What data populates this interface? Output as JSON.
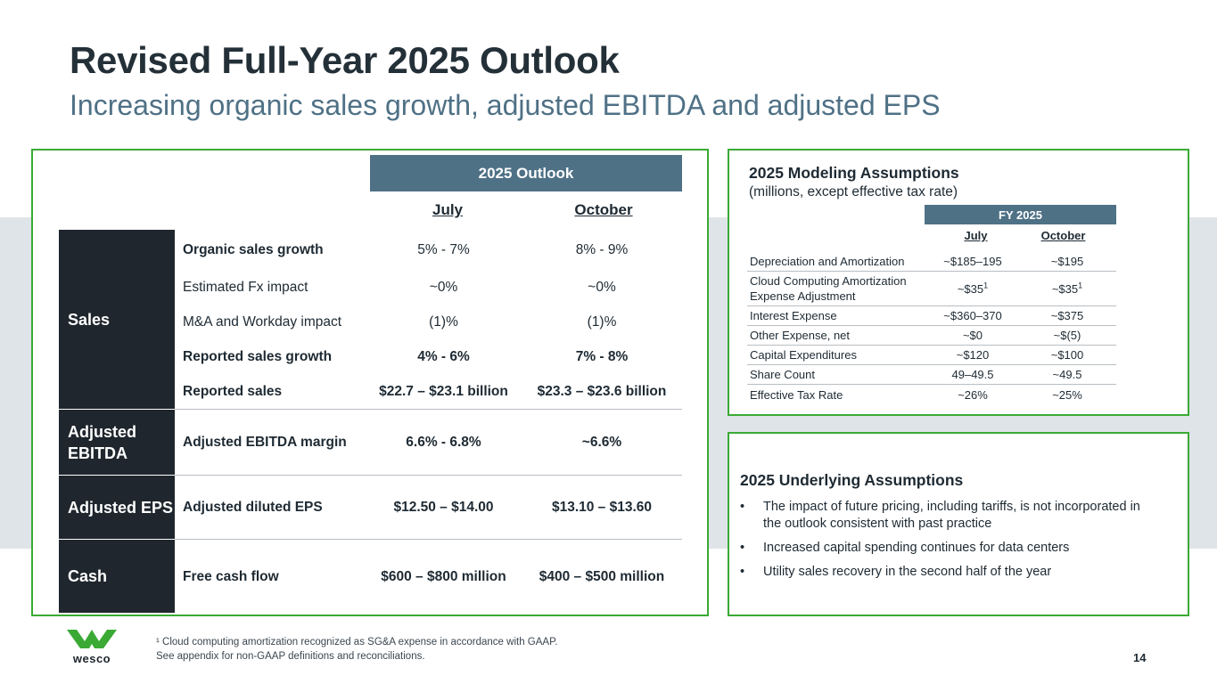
{
  "header": {
    "title": "Revised Full-Year 2025 Outlook",
    "subtitle": "Increasing organic sales growth, adjusted EBITDA and adjusted EPS"
  },
  "outlook": {
    "header": "2025  Outlook",
    "col_july": "July",
    "col_october": "October",
    "sections": {
      "sales": "Sales",
      "ebitda": "Adjusted EBITDA",
      "eps": "Adjusted EPS",
      "cash": "Cash"
    },
    "rows": [
      {
        "label": "Organic sales growth",
        "july": "5% - 7%",
        "october": "8% - 9%"
      },
      {
        "label": "Estimated Fx impact",
        "july": "~0%",
        "october": "~0%"
      },
      {
        "label": "M&A and Workday impact",
        "july": "(1)%",
        "october": "(1)%"
      },
      {
        "label": "Reported sales growth",
        "july": "4% - 6%",
        "october": "7% - 8%"
      },
      {
        "label": "Reported sales",
        "july": "$22.7 – $23.1 billion",
        "october": "$23.3 – $23.6 billion"
      },
      {
        "label": "Adjusted EBITDA margin",
        "july": "6.6% - 6.8%",
        "october": "~6.6%"
      },
      {
        "label": "Adjusted diluted EPS",
        "july": "$12.50 – $14.00",
        "october": "$13.10 – $13.60"
      },
      {
        "label": "Free cash flow",
        "july": "$600 – $800 million",
        "october": "$400 – $500 million"
      }
    ]
  },
  "modeling": {
    "title": "2025 Modeling Assumptions",
    "subtitle": "(millions, except effective tax rate)",
    "header": "FY 2025",
    "col_july": "July",
    "col_october": "October",
    "rows": [
      {
        "label": "Depreciation and Amortization",
        "july": "~$185–195",
        "october": "~$195"
      },
      {
        "label": "Cloud Computing Amortization Expense Adjustment",
        "july": "~$35",
        "october": "~$35",
        "footnote": "1"
      },
      {
        "label": "Interest Expense",
        "july": "~$360–370",
        "october": "~$375"
      },
      {
        "label": "Other Expense, net",
        "july": "~$0",
        "october": "~$(5)"
      },
      {
        "label": "Capital Expenditures",
        "july": "~$120",
        "october": "~$100"
      },
      {
        "label": "Share Count",
        "july": "49–49.5",
        "october": "~49.5"
      },
      {
        "label": "Effective Tax Rate",
        "july": "~26%",
        "october": "~25%"
      }
    ]
  },
  "underlying": {
    "title": "2025 Underlying Assumptions",
    "bullet_char": "•",
    "bullets": [
      "The impact of future pricing, including tariffs, is not incorporated in the outlook consistent with past practice",
      "Increased capital spending continues for data centers",
      "Utility sales recovery in the second half of the year"
    ]
  },
  "footer": {
    "footnote1": "¹ Cloud computing amortization recognized as SG&A expense in accordance with GAAP.",
    "footnote2": "See appendix for non-GAAP definitions and reconciliations.",
    "page_number": "14",
    "logo_text": "wesco"
  },
  "colors": {
    "accent_green": "#3aaa35",
    "slate_blue": "#4f7186",
    "dark": "#1f262d"
  }
}
